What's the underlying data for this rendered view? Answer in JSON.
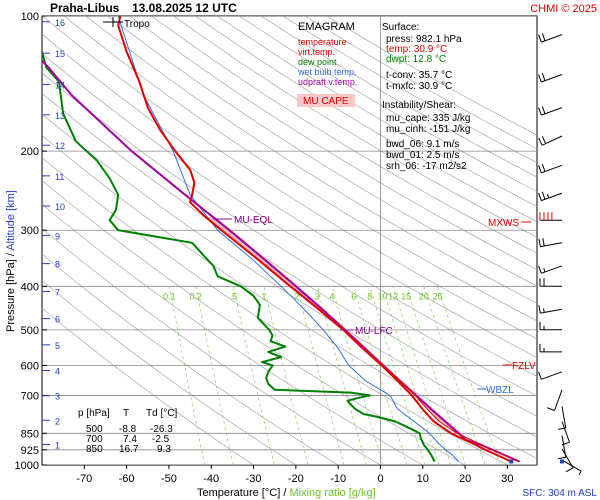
{
  "header": {
    "station": "Praha-Libus",
    "datetime": "13.08.2025 12 UTC",
    "credit": "CHMI © 2025"
  },
  "footer": {
    "sfc": "SFC: 304 m ASL"
  },
  "axes": {
    "ylabel_pressure": "Pressure [hPa]",
    "ylabel_sep": " / ",
    "ylabel_altitude": "Altitude [km]",
    "xlabel_temperature": "Temperature [°C]",
    "xlabel_sep": " / ",
    "xlabel_mixing": "Mixing ratio [g/kg]"
  },
  "legend": {
    "title": "EMAGRAM",
    "items": [
      {
        "label": "temperature",
        "color": "#e00000"
      },
      {
        "label": "virt.temp.",
        "color": "#e00000"
      },
      {
        "label": "dew point",
        "color": "#008000"
      },
      {
        "label": "wet bulb temp.",
        "color": "#3070e0"
      },
      {
        "label": "udpraft v.temp.",
        "color": "#a000a0"
      }
    ],
    "mu_cape": "MU CAPE"
  },
  "indices": {
    "surface_title": "Surface:",
    "surface": [
      {
        "text": "press: 982.1 hPa",
        "color": "#000000"
      },
      {
        "text": "temp: 30.9 °C",
        "color": "#e00000"
      },
      {
        "text": "dwpt: 12.8 °C",
        "color": "#008000"
      }
    ],
    "conv": [
      "t-conv: 35.7 °C",
      "t-mxfc: 30.9 °C"
    ],
    "instability_title": "Instability/Shear:",
    "instability": [
      "mu_cape: 335 J/kg",
      "mu_cinh: -151 J/kg"
    ],
    "shear": [
      "bwd_06: 9.1 m/s",
      "bwd_01: 2.5 m/s",
      "srh_06: -17 m2/s2"
    ]
  },
  "levels_table": {
    "headers": [
      "p [hPa]",
      "T",
      "Td [°C]"
    ],
    "rows": [
      [
        "500",
        "-8.8",
        "-26.3"
      ],
      [
        "700",
        "7.4",
        "-2.5"
      ],
      [
        "850",
        "16.7",
        "9.3"
      ]
    ]
  },
  "annotations": {
    "tropo": "Tropo",
    "mu_eql": "MU-EQL",
    "mu_lfc": "MU-LFC",
    "mxws": "MXWS",
    "fzlv": "FZLV",
    "wbzl": "WBZL"
  },
  "chart_data": {
    "type": "line",
    "title": "Praha-Libus 13.08.2025 12 UTC",
    "xlabel": "Temperature [°C] / Mixing ratio [g/kg]",
    "ylabel": "Pressure [hPa] / Altitude [km]",
    "xlim": [
      -80,
      37
    ],
    "ylim": [
      1000,
      100
    ],
    "y_scale": "log",
    "grid": true,
    "x_ticks": [
      -70,
      -60,
      -50,
      -40,
      -30,
      -20,
      -10,
      0,
      10,
      20,
      30
    ],
    "pressure_ticks": [
      100,
      200,
      300,
      400,
      500,
      600,
      700,
      850,
      925,
      1000
    ],
    "altitude_ticks": [
      1,
      2,
      3,
      4,
      5,
      6,
      7,
      8,
      9,
      10,
      11,
      12,
      13,
      14,
      15,
      16
    ],
    "altitude_pressures": [
      900,
      795,
      701,
      616,
      540,
      472,
      411,
      356,
      308,
      265,
      227,
      194,
      166,
      142,
      121,
      103
    ],
    "mixing_ratio_labels": [
      "0.1",
      "0.2",
      ".5",
      "1",
      "2",
      "3",
      "4",
      "6",
      "8",
      "10",
      "12",
      "15",
      "20",
      "25"
    ],
    "series": [
      {
        "name": "temperature",
        "color": "#e00000",
        "width": 2,
        "points": [
          [
            982,
            30.9
          ],
          [
            950,
            27.5
          ],
          [
            925,
            24.8
          ],
          [
            900,
            22.3
          ],
          [
            850,
            16.7
          ],
          [
            800,
            12.6
          ],
          [
            750,
            9.9
          ],
          [
            700,
            7.4
          ],
          [
            650,
            4.1
          ],
          [
            600,
            0.3
          ],
          [
            550,
            -4.2
          ],
          [
            500,
            -8.8
          ],
          [
            450,
            -14.6
          ],
          [
            400,
            -21.3
          ],
          [
            350,
            -28.7
          ],
          [
            300,
            -37.6
          ],
          [
            280,
            -41.4
          ],
          [
            260,
            -45.0
          ],
          [
            250,
            -44.5
          ],
          [
            235,
            -44.0
          ],
          [
            220,
            -45.0
          ],
          [
            200,
            -48.5
          ],
          [
            180,
            -52.0
          ],
          [
            160,
            -55.0
          ],
          [
            140,
            -57.0
          ],
          [
            120,
            -60.0
          ],
          [
            105,
            -62.0
          ],
          [
            100,
            -61.5
          ]
        ]
      },
      {
        "name": "virt.temp.",
        "color": "#e00000",
        "width": 1,
        "points": [
          [
            982,
            33.0
          ],
          [
            950,
            29.3
          ],
          [
            925,
            26.5
          ],
          [
            900,
            23.8
          ],
          [
            850,
            18.1
          ],
          [
            800,
            13.9
          ],
          [
            750,
            11.0
          ],
          [
            700,
            8.2
          ],
          [
            650,
            4.6
          ],
          [
            600,
            0.6
          ],
          [
            550,
            -4.0
          ],
          [
            500,
            -8.6
          ],
          [
            450,
            -14.5
          ],
          [
            400,
            -21.2
          ],
          [
            350,
            -28.7
          ],
          [
            300,
            -37.6
          ],
          [
            280,
            -41.4
          ],
          [
            260,
            -45.0
          ],
          [
            250,
            -44.5
          ],
          [
            235,
            -44.0
          ],
          [
            220,
            -45.0
          ],
          [
            200,
            -48.5
          ],
          [
            180,
            -52.0
          ],
          [
            160,
            -55.0
          ],
          [
            140,
            -57.0
          ],
          [
            120,
            -60.0
          ],
          [
            105,
            -62.0
          ],
          [
            100,
            -61.5
          ]
        ]
      },
      {
        "name": "dew point",
        "color": "#008000",
        "width": 2,
        "points": [
          [
            982,
            12.8
          ],
          [
            950,
            12.0
          ],
          [
            925,
            11.2
          ],
          [
            900,
            10.2
          ],
          [
            870,
            9.5
          ],
          [
            850,
            9.3
          ],
          [
            820,
            6.0
          ],
          [
            800,
            3.5
          ],
          [
            780,
            -1.0
          ],
          [
            770,
            -4.0
          ],
          [
            750,
            -6.0
          ],
          [
            730,
            -7.2
          ],
          [
            720,
            -7.8
          ],
          [
            710,
            -5.5
          ],
          [
            700,
            -2.5
          ],
          [
            690,
            -7.0
          ],
          [
            680,
            -25.0
          ],
          [
            660,
            -26.5
          ],
          [
            640,
            -27.0
          ],
          [
            620,
            -26.5
          ],
          [
            600,
            -25.5
          ],
          [
            590,
            -28.0
          ],
          [
            575,
            -23.5
          ],
          [
            560,
            -26.5
          ],
          [
            545,
            -22.5
          ],
          [
            530,
            -26.0
          ],
          [
            515,
            -25.5
          ],
          [
            500,
            -26.3
          ],
          [
            470,
            -29.0
          ],
          [
            440,
            -28.5
          ],
          [
            420,
            -30.0
          ],
          [
            400,
            -33.0
          ],
          [
            380,
            -38.5
          ],
          [
            360,
            -39.5
          ],
          [
            340,
            -42.0
          ],
          [
            320,
            -44.5
          ],
          [
            300,
            -62.0
          ],
          [
            285,
            -64.0
          ],
          [
            270,
            -62.5
          ],
          [
            250,
            -62.0
          ],
          [
            230,
            -64.0
          ],
          [
            210,
            -67.0
          ],
          [
            190,
            -72.0
          ],
          [
            165,
            -75.0
          ],
          [
            140,
            -76.0
          ],
          [
            130,
            -79.0
          ],
          [
            120,
            -80.0
          ]
        ]
      },
      {
        "name": "wet bulb temp.",
        "color": "#3070e0",
        "width": 1,
        "points": [
          [
            982,
            18.5
          ],
          [
            950,
            17.0
          ],
          [
            925,
            15.4
          ],
          [
            900,
            14.0
          ],
          [
            850,
            11.6
          ],
          [
            800,
            8.0
          ],
          [
            750,
            4.0
          ],
          [
            700,
            2.3
          ],
          [
            650,
            -3.5
          ],
          [
            600,
            -7.5
          ],
          [
            550,
            -10.0
          ],
          [
            500,
            -13.5
          ],
          [
            450,
            -18.0
          ],
          [
            400,
            -23.5
          ],
          [
            350,
            -30.0
          ],
          [
            300,
            -38.5
          ],
          [
            250,
            -45.0
          ],
          [
            200,
            -49.0
          ],
          [
            150,
            -56.0
          ],
          [
            100,
            -62.0
          ]
        ]
      },
      {
        "name": "udpraft v.temp.",
        "color": "#a000a0",
        "width": 2,
        "points": [
          [
            982,
            32.8
          ],
          [
            950,
            29.3
          ],
          [
            925,
            26.5
          ],
          [
            900,
            23.5
          ],
          [
            880,
            20.3
          ],
          [
            850,
            18.5
          ],
          [
            800,
            15.3
          ],
          [
            750,
            11.9
          ],
          [
            700,
            8.4
          ],
          [
            650,
            4.6
          ],
          [
            600,
            0.6
          ],
          [
            550,
            -3.7
          ],
          [
            500,
            -8.4
          ],
          [
            450,
            -13.8
          ],
          [
            400,
            -20.0
          ],
          [
            350,
            -27.2
          ],
          [
            300,
            -35.7
          ],
          [
            250,
            -46.2
          ],
          [
            200,
            -58.8
          ],
          [
            150,
            -73.0
          ],
          [
            130,
            -78.5
          ],
          [
            120,
            -82.0
          ]
        ]
      }
    ],
    "wind_barbs": [
      {
        "p": 110,
        "dir": 250,
        "speed_kt": 20
      },
      {
        "p": 135,
        "dir": 250,
        "speed_kt": 20
      },
      {
        "p": 160,
        "dir": 250,
        "speed_kt": 20
      },
      {
        "p": 185,
        "dir": 245,
        "speed_kt": 20
      },
      {
        "p": 215,
        "dir": 250,
        "speed_kt": 20
      },
      {
        "p": 248,
        "dir": 250,
        "speed_kt": 25
      },
      {
        "p": 285,
        "dir": 270,
        "speed_kt": 40
      },
      {
        "p": 320,
        "dir": 260,
        "speed_kt": 20
      },
      {
        "p": 360,
        "dir": 250,
        "speed_kt": 15
      },
      {
        "p": 400,
        "dir": 270,
        "speed_kt": 20
      },
      {
        "p": 450,
        "dir": 260,
        "speed_kt": 15
      },
      {
        "p": 500,
        "dir": 270,
        "speed_kt": 15
      },
      {
        "p": 560,
        "dir": 270,
        "speed_kt": 15
      },
      {
        "p": 620,
        "dir": 250,
        "speed_kt": 10
      },
      {
        "p": 680,
        "dir": 200,
        "speed_kt": 10
      },
      {
        "p": 740,
        "dir": 170,
        "speed_kt": 10
      },
      {
        "p": 800,
        "dir": 160,
        "speed_kt": 10
      },
      {
        "p": 860,
        "dir": 170,
        "speed_kt": 10
      },
      {
        "p": 920,
        "dir": 150,
        "speed_kt": 10
      },
      {
        "p": 975,
        "dir": 120,
        "speed_kt": 5
      }
    ]
  }
}
